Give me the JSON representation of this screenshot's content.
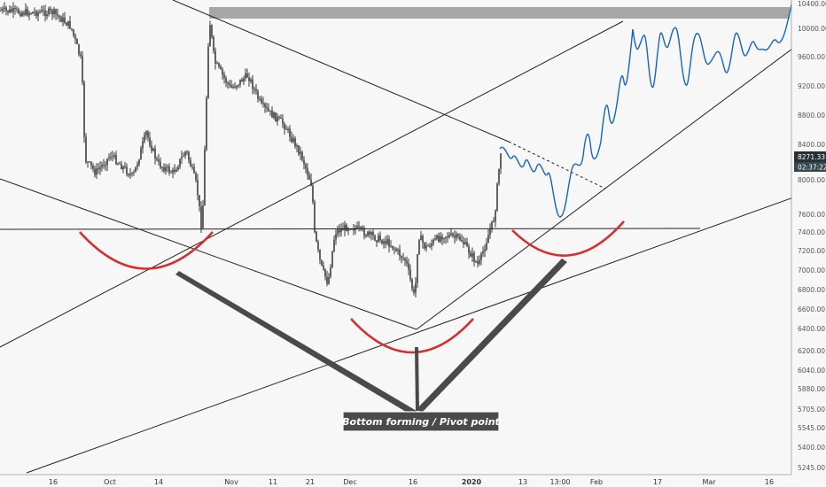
{
  "chart_data": {
    "type": "candlestick",
    "x_ticks": [
      "16",
      "Oct",
      "14",
      "Nov",
      "11",
      "21",
      "Dec",
      "16",
      "2020",
      "13",
      "13:00",
      "Feb",
      "17",
      "Mar",
      "16"
    ],
    "y_ticks": [
      "10400.00",
      "10000.00",
      "9600.00",
      "9200.00",
      "8800.00",
      "8400.00",
      "8000.00",
      "7600.00",
      "7400.00",
      "7200.00",
      "7000.00",
      "6800.00",
      "6600.00",
      "6400.00",
      "6200.00",
      "6040.00",
      "5880.00",
      "5705.00",
      "5545.00",
      "5400.00",
      "5245.00"
    ],
    "current_price": "8271.33",
    "countdown": "02:37:22",
    "annotation": "Bottom forming / Pivot point",
    "grid": false,
    "colors": {
      "candles": "#222222",
      "projection": "#1565c0",
      "arcs": "#d32f2f",
      "resistance_band": "#a6a6a6",
      "callout": "#4a4a4a",
      "price_label": "#263238"
    }
  }
}
